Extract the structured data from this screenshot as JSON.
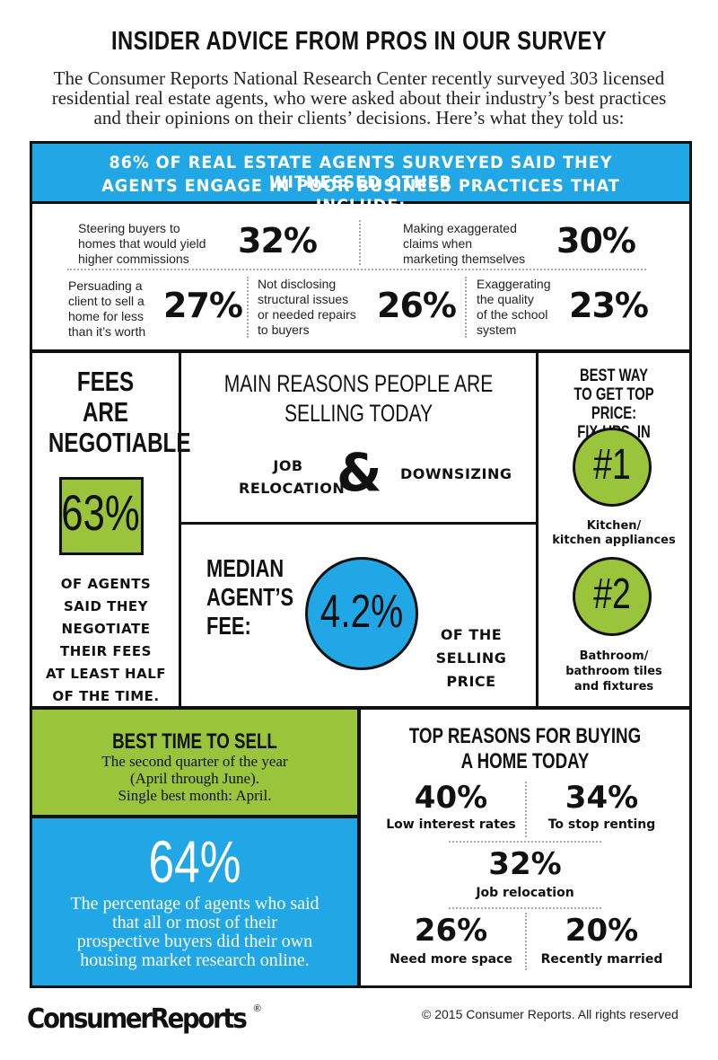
{
  "header": {
    "title": "INSIDER ADVICE FROM PROS IN OUR SURVEY",
    "intro_line1": "The Consumer Reports National Research Center recently surveyed 303 licensed",
    "intro_line2": "residential real estate agents, who were asked about their industry’s best practices",
    "intro_line3": "and their opinions on their clients’ decisions. Here’s what they told us:"
  },
  "banner": {
    "line1": "86% OF REAL ESTATE AGENTS SURVEYED SAID THEY WITNESSED OTHER",
    "line2": "AGENTS ENGAGE IN POOR BUSINESS PRACTICES THAT INCLUDE:"
  },
  "practices": [
    {
      "l1": "Steering buyers to",
      "l2": "homes that would yield",
      "l3": "higher commissions",
      "l4": "",
      "pct": "32%"
    },
    {
      "l1": "Making exaggerated",
      "l2": "claims when",
      "l3": "marketing themselves",
      "l4": "",
      "pct": "30%"
    },
    {
      "l1": "Persuading a",
      "l2": "client to sell a",
      "l3": "home for less",
      "l4": "than it’s worth",
      "pct": "27%"
    },
    {
      "l1": "Not disclosing",
      "l2": "structural issues",
      "l3": "or needed repairs",
      "l4": "to buyers",
      "pct": "26%"
    },
    {
      "l1": "Exaggerating",
      "l2": "the quality",
      "l3": "of the school",
      "l4": "system",
      "pct": "23%"
    }
  ],
  "fees": {
    "head1": "FEES",
    "head2": "ARE",
    "head3": "NEGOTIABLE",
    "pct": "63%",
    "b1": "OF AGENTS",
    "b2": "SAID THEY",
    "b3": "NEGOTIATE",
    "b4": "THEIR FEES",
    "b5": "AT LEAST HALF",
    "b6": "OF THE TIME."
  },
  "reasons_selling": {
    "head1": "MAIN REASONS PEOPLE ARE",
    "head2": "SELLING TODAY",
    "left1": "JOB",
    "left2": "RELOCATION",
    "amp": "&",
    "right": "DOWNSIZING"
  },
  "median_fee": {
    "l1": "MEDIAN",
    "l2": "AGENT’S",
    "l3": "FEE:",
    "pct": "4.2%",
    "r1": "OF THE",
    "r2": "SELLING",
    "r3": "PRICE"
  },
  "fixups": {
    "head1": "BEST WAY",
    "head2": "TO GET TOP PRICE:",
    "head3": "FIX-UPS, IN ORDER:",
    "rank1": "#1",
    "item1_l1": "Kitchen/",
    "item1_l2": "kitchen appliances",
    "rank2": "#2",
    "item2_l1": "Bathroom/",
    "item2_l2": "bathroom tiles",
    "item2_l3": "and fixtures"
  },
  "best_time": {
    "head": "BEST TIME TO SELL",
    "l1": "The second quarter of the year",
    "l2": "(April through June).",
    "l3": "Single best month: April."
  },
  "research": {
    "pct": "64%",
    "l1": "The percentage of agents who said",
    "l2": "that all or most of their",
    "l3": "prospective buyers did their own",
    "l4": "housing market research online."
  },
  "buying": {
    "head1": "TOP  REASONS FOR BUYING",
    "head2": "A HOME TODAY",
    "items": [
      {
        "pct": "40%",
        "label": "Low interest rates"
      },
      {
        "pct": "34%",
        "label": "To stop renting"
      },
      {
        "pct": "32%",
        "label": "Job relocation"
      },
      {
        "pct": "26%",
        "label": "Need more space"
      },
      {
        "pct": "20%",
        "label": "Recently married"
      }
    ]
  },
  "footer": {
    "logo": "ConsumerReports",
    "reg": "®",
    "copyright": "© 2015 Consumer Reports. All rights reserved"
  },
  "colors": {
    "blue": "#21a7e5",
    "green": "#9ac43b",
    "black": "#111111"
  }
}
